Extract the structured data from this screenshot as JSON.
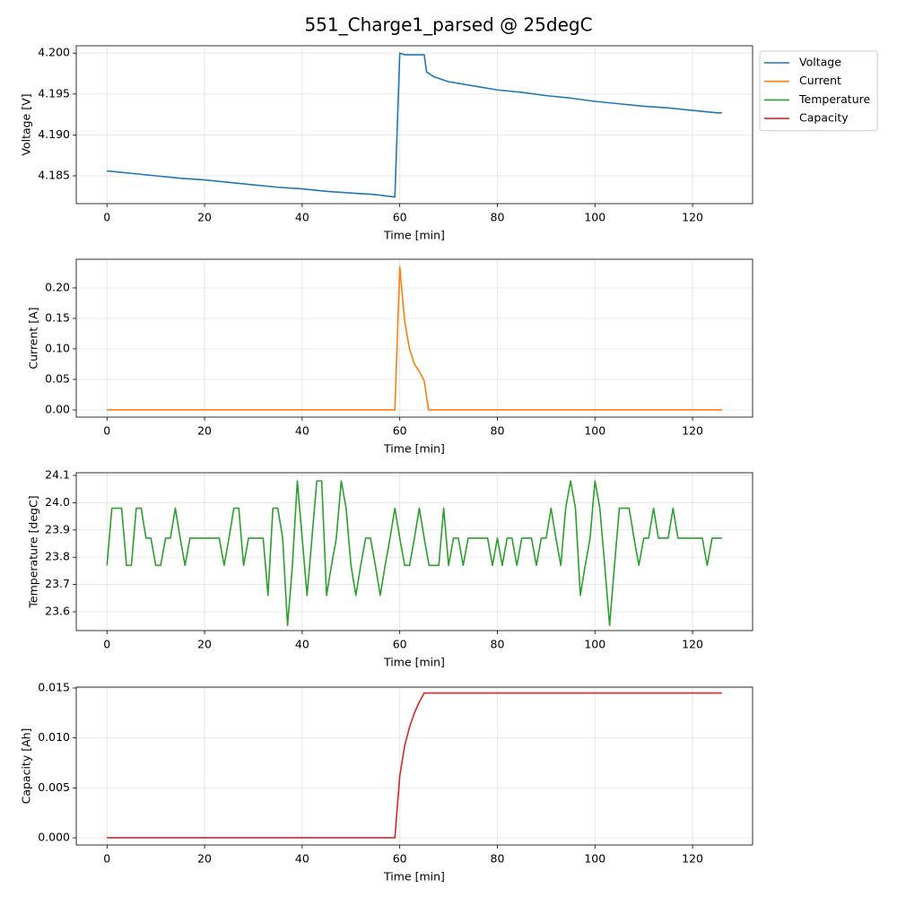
{
  "title": "551_Charge1_parsed @ 25degC",
  "chart_data": [
    {
      "type": "line",
      "xlabel": "Time [min]",
      "ylabel": "Voltage [V]",
      "grid": true,
      "legend": "outside upper right",
      "xlim": [
        -6.3,
        132.3
      ],
      "xticks": [
        0,
        20,
        40,
        60,
        80,
        100,
        120
      ],
      "ylim": [
        4.1816,
        4.2009
      ],
      "yticks": [
        4.185,
        {
          "value": 4.19,
          "label": "4.190"
        },
        4.195,
        {
          "value": 4.2,
          "label": "4.200"
        }
      ],
      "x": [
        0,
        5,
        10,
        15,
        20,
        25,
        30,
        35,
        40,
        45,
        50,
        55,
        59,
        60,
        61,
        65,
        65.5,
        67,
        70,
        75,
        80,
        85,
        90,
        95,
        100,
        105,
        110,
        115,
        120,
        125,
        126
      ],
      "series": [
        {
          "name": "Voltage",
          "color": "#1f77b4",
          "values": [
            4.1856,
            4.1853,
            4.185,
            4.1847,
            4.1845,
            4.1842,
            4.1839,
            4.1836,
            4.1834,
            4.1831,
            4.1829,
            4.1827,
            4.1824,
            4.2,
            4.1998,
            4.1998,
            4.1977,
            4.1971,
            4.1965,
            4.196,
            4.1955,
            4.1952,
            4.1948,
            4.1945,
            4.1941,
            4.1938,
            4.1935,
            4.1933,
            4.193,
            4.1927,
            4.1927
          ]
        }
      ]
    },
    {
      "type": "line",
      "xlabel": "Time [min]",
      "ylabel": "Current [A]",
      "grid": true,
      "xlim": [
        -6.3,
        132.3
      ],
      "xticks": [
        0,
        20,
        40,
        60,
        80,
        100,
        120
      ],
      "ylim": [
        -0.0118,
        0.247
      ],
      "yticks": [
        {
          "value": 0,
          "label": "0.00"
        },
        0.05,
        {
          "value": 0.1,
          "label": "0.10"
        },
        0.15,
        {
          "value": 0.2,
          "label": "0.20"
        }
      ],
      "x": [
        0,
        59,
        60,
        61,
        62,
        63,
        64,
        65,
        65.9,
        126
      ],
      "series": [
        {
          "name": "Current",
          "color": "#ff7f0e",
          "values": [
            0,
            0,
            0.235,
            0.145,
            0.1,
            0.075,
            0.063,
            0.048,
            0,
            0
          ]
        }
      ]
    },
    {
      "type": "line",
      "xlabel": "Time [min]",
      "ylabel": "Temperature [degC]",
      "grid": true,
      "xlim": [
        -6.3,
        132.3
      ],
      "xticks": [
        0,
        20,
        40,
        60,
        80,
        100,
        120
      ],
      "ylim": [
        23.531,
        24.11
      ],
      "yticks": [
        23.6,
        23.7,
        23.8,
        23.9,
        {
          "value": 24,
          "label": "24.0"
        },
        24.1
      ],
      "x": [
        0,
        1,
        2,
        3,
        4,
        5,
        6,
        7,
        8,
        9,
        10,
        11,
        12,
        13,
        14,
        15,
        16,
        17,
        18,
        19,
        20,
        21,
        22,
        23,
        24,
        25,
        26,
        27,
        28,
        29,
        30,
        31,
        32,
        33,
        34,
        35,
        36,
        37,
        38,
        39,
        40,
        41,
        42,
        43,
        44,
        45,
        46,
        47,
        48,
        49,
        50,
        51,
        52,
        53,
        54,
        55,
        56,
        57,
        58,
        59,
        60,
        61,
        62,
        63,
        64,
        65,
        66,
        67,
        68,
        69,
        70,
        71,
        72,
        73,
        74,
        75,
        76,
        77,
        78,
        79,
        80,
        81,
        82,
        83,
        84,
        85,
        86,
        87,
        88,
        89,
        90,
        91,
        92,
        93,
        94,
        95,
        96,
        97,
        98,
        99,
        100,
        101,
        102,
        103,
        104,
        105,
        106,
        107,
        108,
        109,
        110,
        111,
        112,
        113,
        114,
        115,
        116,
        117,
        118,
        119,
        120,
        121,
        122,
        123,
        124,
        125,
        126
      ],
      "series": [
        {
          "name": "Temperature",
          "color": "#2ca02c",
          "values": [
            23.77,
            23.98,
            23.98,
            23.98,
            23.77,
            23.77,
            23.98,
            23.98,
            23.87,
            23.87,
            23.77,
            23.77,
            23.87,
            23.87,
            23.98,
            23.87,
            23.77,
            23.87,
            23.87,
            23.87,
            23.87,
            23.87,
            23.87,
            23.87,
            23.77,
            23.87,
            23.98,
            23.98,
            23.77,
            23.87,
            23.87,
            23.87,
            23.87,
            23.66,
            23.98,
            23.98,
            23.87,
            23.55,
            23.77,
            24.08,
            23.87,
            23.66,
            23.87,
            24.08,
            24.08,
            23.66,
            23.77,
            23.87,
            24.08,
            23.98,
            23.77,
            23.66,
            23.77,
            23.87,
            23.87,
            23.77,
            23.66,
            23.77,
            23.87,
            23.98,
            23.87,
            23.77,
            23.77,
            23.87,
            23.98,
            23.87,
            23.77,
            23.77,
            23.77,
            23.98,
            23.77,
            23.87,
            23.87,
            23.77,
            23.87,
            23.87,
            23.87,
            23.87,
            23.87,
            23.77,
            23.87,
            23.77,
            23.87,
            23.87,
            23.77,
            23.87,
            23.87,
            23.87,
            23.77,
            23.87,
            23.87,
            23.98,
            23.87,
            23.77,
            23.98,
            24.08,
            23.98,
            23.66,
            23.77,
            23.87,
            24.08,
            23.98,
            23.77,
            23.55,
            23.77,
            23.98,
            23.98,
            23.98,
            23.87,
            23.77,
            23.87,
            23.87,
            23.98,
            23.87,
            23.87,
            23.87,
            23.98,
            23.87,
            23.87,
            23.87,
            23.87,
            23.87,
            23.87,
            23.77,
            23.87,
            23.87,
            23.87
          ]
        }
      ]
    },
    {
      "type": "line",
      "xlabel": "Time [min]",
      "ylabel": "Capacity [Ah]",
      "grid": true,
      "xlim": [
        -6.3,
        132.3
      ],
      "xticks": [
        0,
        20,
        40,
        60,
        80,
        100,
        120
      ],
      "ylim": [
        -0.00072,
        0.01509
      ],
      "yticks": [
        {
          "value": 0,
          "label": "0.000"
        },
        0.005,
        {
          "value": 0.01,
          "label": "0.010"
        },
        0.015
      ],
      "x": [
        0,
        59,
        60,
        61,
        62,
        63,
        64,
        65,
        126
      ],
      "series": [
        {
          "name": "Capacity",
          "color": "#d62728",
          "values": [
            0,
            0,
            0.0062,
            0.0092,
            0.0111,
            0.0125,
            0.0136,
            0.0145,
            0.0145
          ]
        }
      ]
    }
  ]
}
